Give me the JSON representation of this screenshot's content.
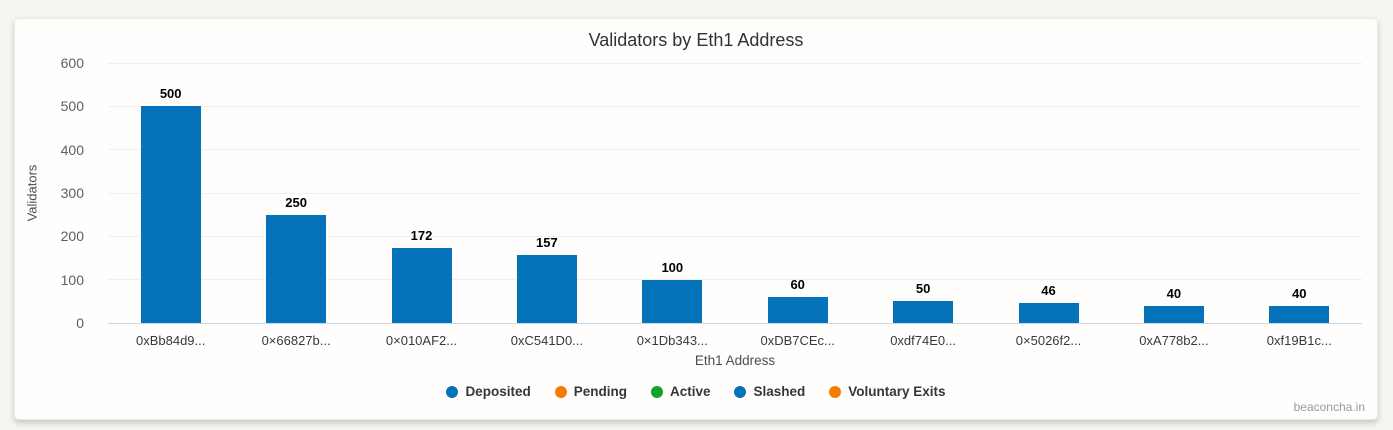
{
  "page": {
    "watermark": "beaconcha.in"
  },
  "chart_data": {
    "type": "bar",
    "title": "Validators by Eth1 Address",
    "xlabel": "Eth1 Address",
    "ylabel": "Validators",
    "categories": [
      "0xBb84d9...",
      "0×66827b...",
      "0×010AF2...",
      "0xC541D0...",
      "0×1Db343...",
      "0xDB7CEc...",
      "0xdf74E0...",
      "0×5026f2...",
      "0xA778b2...",
      "0xf19B1c..."
    ],
    "values": [
      500,
      250,
      172,
      157,
      100,
      60,
      50,
      46,
      40,
      40
    ],
    "ylim": [
      0,
      600
    ],
    "yticks": [
      0,
      100,
      200,
      300,
      400,
      500,
      600
    ],
    "grid": true,
    "bar_color": "#0473b9",
    "axis_line_color": "#ccd6eb",
    "legend": {
      "position": "bottom",
      "entries": [
        {
          "label": "Deposited",
          "color": "#0473b9"
        },
        {
          "label": "Pending",
          "color": "#f57c00"
        },
        {
          "label": "Active",
          "color": "#0fa327"
        },
        {
          "label": "Slashed",
          "color": "#0473b9"
        },
        {
          "label": "Voluntary Exits",
          "color": "#f57c00"
        }
      ]
    }
  }
}
